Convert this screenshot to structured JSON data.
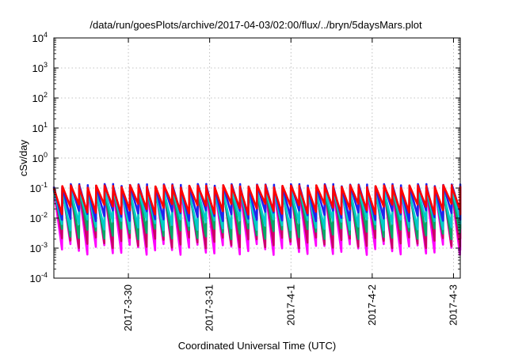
{
  "chart_data": {
    "type": "line",
    "title": "/data/run/goesPlots/archive/2017-04-03/02:00/flux/../bryn/5daysMars.plot",
    "xlabel": "Coordinated Universal Time (UTC)",
    "ylabel": "cSv/day",
    "yscale": "log",
    "ylim": [
      0.0001,
      10000
    ],
    "yticks": [
      {
        "base": "10",
        "exp": "-4"
      },
      {
        "base": "10",
        "exp": "-3"
      },
      {
        "base": "10",
        "exp": "-2"
      },
      {
        "base": "10",
        "exp": "-1"
      },
      {
        "base": "10",
        "exp": "0"
      },
      {
        "base": "10",
        "exp": "1"
      },
      {
        "base": "10",
        "exp": "2"
      },
      {
        "base": "10",
        "exp": "3"
      },
      {
        "base": "10",
        "exp": "4"
      }
    ],
    "xlim": [
      "2017-03-29T02:00",
      "2017-04-03T02:00"
    ],
    "xticks": [
      {
        "label": "2017-3-30",
        "date": "2017-03-30T00:00"
      },
      {
        "label": "2017-3-31",
        "date": "2017-03-31T00:00"
      },
      {
        "label": "2017-4-1",
        "date": "2017-04-01T00:00"
      },
      {
        "label": "2017-4-2",
        "date": "2017-04-02T00:00"
      },
      {
        "label": "2017-4-3",
        "date": "2017-04-03T00:00"
      }
    ],
    "grid": true,
    "legend": "none",
    "pattern": {
      "description_of_waveform": "sawtooth",
      "period_hours": 2.5,
      "series": [
        {
          "color": "#ff00ff",
          "peak": 0.09,
          "trough": 0.0009
        },
        {
          "color": "#cc0066",
          "peak": 0.1,
          "trough": 0.0015
        },
        {
          "color": "#00aa66",
          "peak": 0.09,
          "trough": 0.003
        },
        {
          "color": "#00cccc",
          "peak": 0.08,
          "trough": 0.006
        },
        {
          "color": "#2222ee",
          "peak": 0.12,
          "trough": 0.012
        },
        {
          "color": "#ff0000",
          "peak": 0.11,
          "trough": 0.02
        }
      ]
    }
  }
}
